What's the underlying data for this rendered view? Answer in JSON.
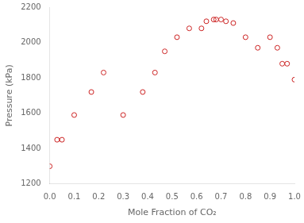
{
  "chart_data": {
    "type": "scatter",
    "xlabel": "Mole Fraction of CO₂",
    "ylabel": "Pressure (kPa)",
    "x": [
      0.0,
      0.03,
      0.05,
      0.1,
      0.17,
      0.22,
      0.3,
      0.38,
      0.43,
      0.47,
      0.52,
      0.57,
      0.62,
      0.64,
      0.67,
      0.68,
      0.7,
      0.72,
      0.75,
      0.8,
      0.85,
      0.9,
      0.93,
      0.95,
      0.97,
      1.0
    ],
    "values": [
      1300,
      1450,
      1450,
      1590,
      1720,
      1830,
      1590,
      1720,
      1830,
      1950,
      2030,
      2080,
      2080,
      2120,
      2130,
      2130,
      2130,
      2120,
      2110,
      2030,
      1970,
      2030,
      1970,
      1880,
      1880,
      1790
    ],
    "color": "#cc2222",
    "marker": "circle",
    "xlim": [
      0.0,
      1.0
    ],
    "ylim": [
      1200,
      2200
    ],
    "xticks": [
      {
        "value": 0.0,
        "label": "0.0"
      },
      0.1,
      0.2,
      0.3,
      0.4,
      0.5,
      0.6,
      0.7,
      0.8,
      0.9,
      {
        "value": 1.0,
        "label": "1.0"
      }
    ],
    "yticks": [
      1200,
      1400,
      1600,
      1800,
      2000,
      2200
    ],
    "grid": false
  }
}
